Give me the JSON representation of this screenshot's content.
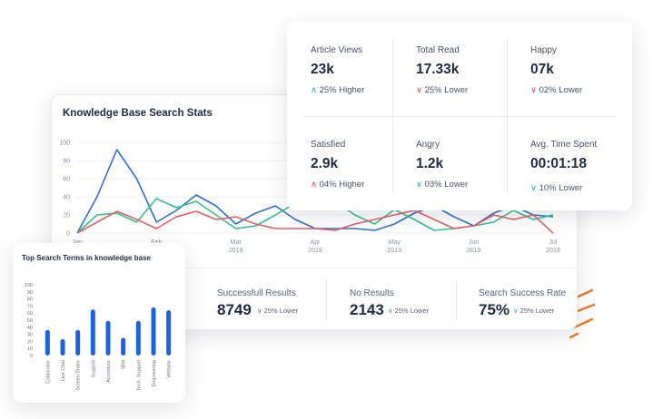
{
  "main_card": {
    "title": "Knowledge Base Search Stats",
    "bottom_stats": [
      {
        "label": "Successfull Results",
        "value": "8749",
        "change": "25% Lower",
        "direction": "down"
      },
      {
        "label": "No Results",
        "value": "2143",
        "change": "25% Lower",
        "direction": "up"
      },
      {
        "label": "Search Success Rate",
        "value": "75%",
        "change": "25% Lower",
        "direction": "up"
      }
    ]
  },
  "top_card": {
    "stats": [
      {
        "label": "Article Views",
        "value": "23k",
        "change": "25% Higher",
        "direction": "up"
      },
      {
        "label": "Total Read",
        "value": "17.33k",
        "change": "25% Lower",
        "direction": "down"
      },
      {
        "label": "Happy",
        "value": "07k",
        "change": "02% Lower",
        "direction": "down"
      },
      {
        "label": "Satisfied",
        "value": "2.9k",
        "change": "04% Higher",
        "direction": "down"
      },
      {
        "label": "Angry",
        "value": "1.2k",
        "change": "03% Lower",
        "direction": "up"
      },
      {
        "label": "Avg. Time Spent",
        "value": "00:01:18",
        "change": "10% Lower",
        "direction": "up"
      }
    ]
  },
  "colors": {
    "up": "#2fb37a",
    "down": "#e2484a",
    "blue": "#2f6fe0",
    "green": "#2fc48a",
    "red": "#ec5d5f",
    "bar": "#1f62e0",
    "accent": "#f07a2a"
  },
  "chart_data": [
    {
      "type": "line",
      "title": "Knowledge Base Search Stats",
      "x_tick_labels": [
        {
          "month": "Jan",
          "year": ""
        },
        {
          "month": "Feb",
          "year": ""
        },
        {
          "month": "Mar",
          "year": "2019"
        },
        {
          "month": "Apr",
          "year": "2019"
        },
        {
          "month": "May",
          "year": "2019"
        },
        {
          "month": "Jun",
          "year": "2019"
        },
        {
          "month": "Jul",
          "year": "2019"
        }
      ],
      "y_ticks": [
        0,
        20,
        40,
        60,
        80,
        100
      ],
      "ylim": [
        0,
        100
      ],
      "x": [
        0,
        0.5,
        1,
        1.5,
        2,
        2.5,
        3,
        3.5,
        4,
        4.5,
        5,
        5.5,
        6,
        6.5,
        7,
        7.5,
        8,
        8.5,
        9,
        9.5,
        10,
        10.5,
        11,
        11.5,
        12
      ],
      "series": [
        {
          "color": "blue",
          "values": [
            0,
            40,
            92,
            60,
            12,
            25,
            42,
            30,
            10,
            22,
            30,
            15,
            5,
            5,
            5,
            3,
            10,
            22,
            30,
            18,
            8,
            22,
            30,
            20,
            18
          ]
        },
        {
          "color": "green",
          "values": [
            0,
            20,
            22,
            12,
            38,
            28,
            35,
            20,
            5,
            8,
            20,
            33,
            50,
            35,
            20,
            10,
            26,
            15,
            3,
            5,
            8,
            12,
            25,
            15,
            20
          ]
        },
        {
          "color": "red",
          "values": [
            0,
            12,
            24,
            15,
            5,
            18,
            24,
            15,
            18,
            10,
            5,
            5,
            5,
            3,
            10,
            15,
            20,
            25,
            15,
            5,
            8,
            20,
            15,
            20,
            0
          ]
        }
      ]
    },
    {
      "type": "bar",
      "title": "Top Search Terms in knowledge base",
      "categories": [
        "Cubicrowe",
        "Live Chat",
        "Screen Share",
        "Support",
        "Accenture",
        "IBM",
        "Tech. Support",
        "Engineering",
        "Website"
      ],
      "values": [
        36,
        23,
        36,
        65,
        49,
        25,
        49,
        68,
        64
      ],
      "y_ticks": [
        0,
        10,
        20,
        30,
        40,
        50,
        60,
        70,
        80,
        90,
        100
      ],
      "ylim": [
        0,
        100
      ]
    }
  ]
}
